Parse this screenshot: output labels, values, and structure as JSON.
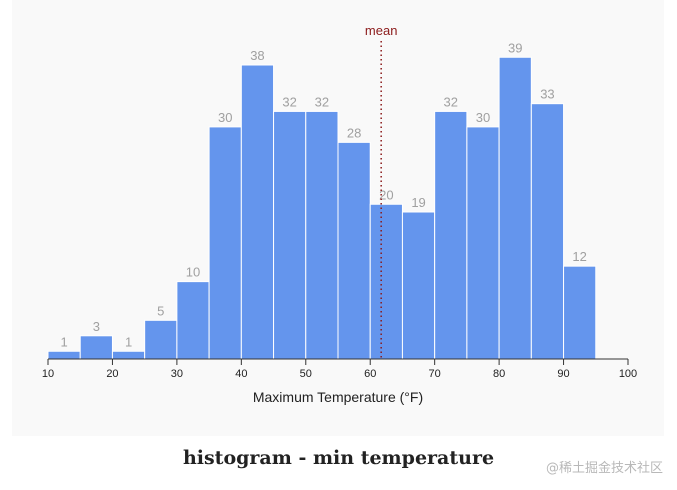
{
  "caption": "histogram - min temperature",
  "watermark": "@稀土掘金技术社区",
  "colors": {
    "bar": "#6495ed",
    "bar_stroke": "#ffffff",
    "count_label": "#a0a0a0",
    "mean_line": "#8b1a1a",
    "axis": "#333333",
    "panel_background": "#f9f9f9"
  },
  "chart_data": {
    "type": "bar",
    "xlabel": "Maximum Temperature (°F)",
    "ylabel": "",
    "xlim": [
      10,
      100
    ],
    "xticks": [
      10,
      20,
      30,
      40,
      50,
      60,
      70,
      80,
      90,
      100
    ],
    "ylim": [
      0,
      45
    ],
    "bins": [
      {
        "x0": 10,
        "x1": 15,
        "count": 1
      },
      {
        "x0": 15,
        "x1": 20,
        "count": 3
      },
      {
        "x0": 20,
        "x1": 25,
        "count": 1
      },
      {
        "x0": 25,
        "x1": 30,
        "count": 5
      },
      {
        "x0": 30,
        "x1": 35,
        "count": 10
      },
      {
        "x0": 35,
        "x1": 40,
        "count": 30
      },
      {
        "x0": 40,
        "x1": 45,
        "count": 38
      },
      {
        "x0": 45,
        "x1": 50,
        "count": 32
      },
      {
        "x0": 50,
        "x1": 55,
        "count": 32
      },
      {
        "x0": 55,
        "x1": 60,
        "count": 28
      },
      {
        "x0": 60,
        "x1": 65,
        "count": 20
      },
      {
        "x0": 65,
        "x1": 70,
        "count": 19
      },
      {
        "x0": 70,
        "x1": 75,
        "count": 32
      },
      {
        "x0": 75,
        "x1": 80,
        "count": 30
      },
      {
        "x0": 80,
        "x1": 85,
        "count": 39
      },
      {
        "x0": 85,
        "x1": 90,
        "count": 33
      },
      {
        "x0": 90,
        "x1": 95,
        "count": 12
      }
    ],
    "mean": {
      "label": "mean",
      "value": 61.7
    },
    "grid": false,
    "legend": "none"
  }
}
